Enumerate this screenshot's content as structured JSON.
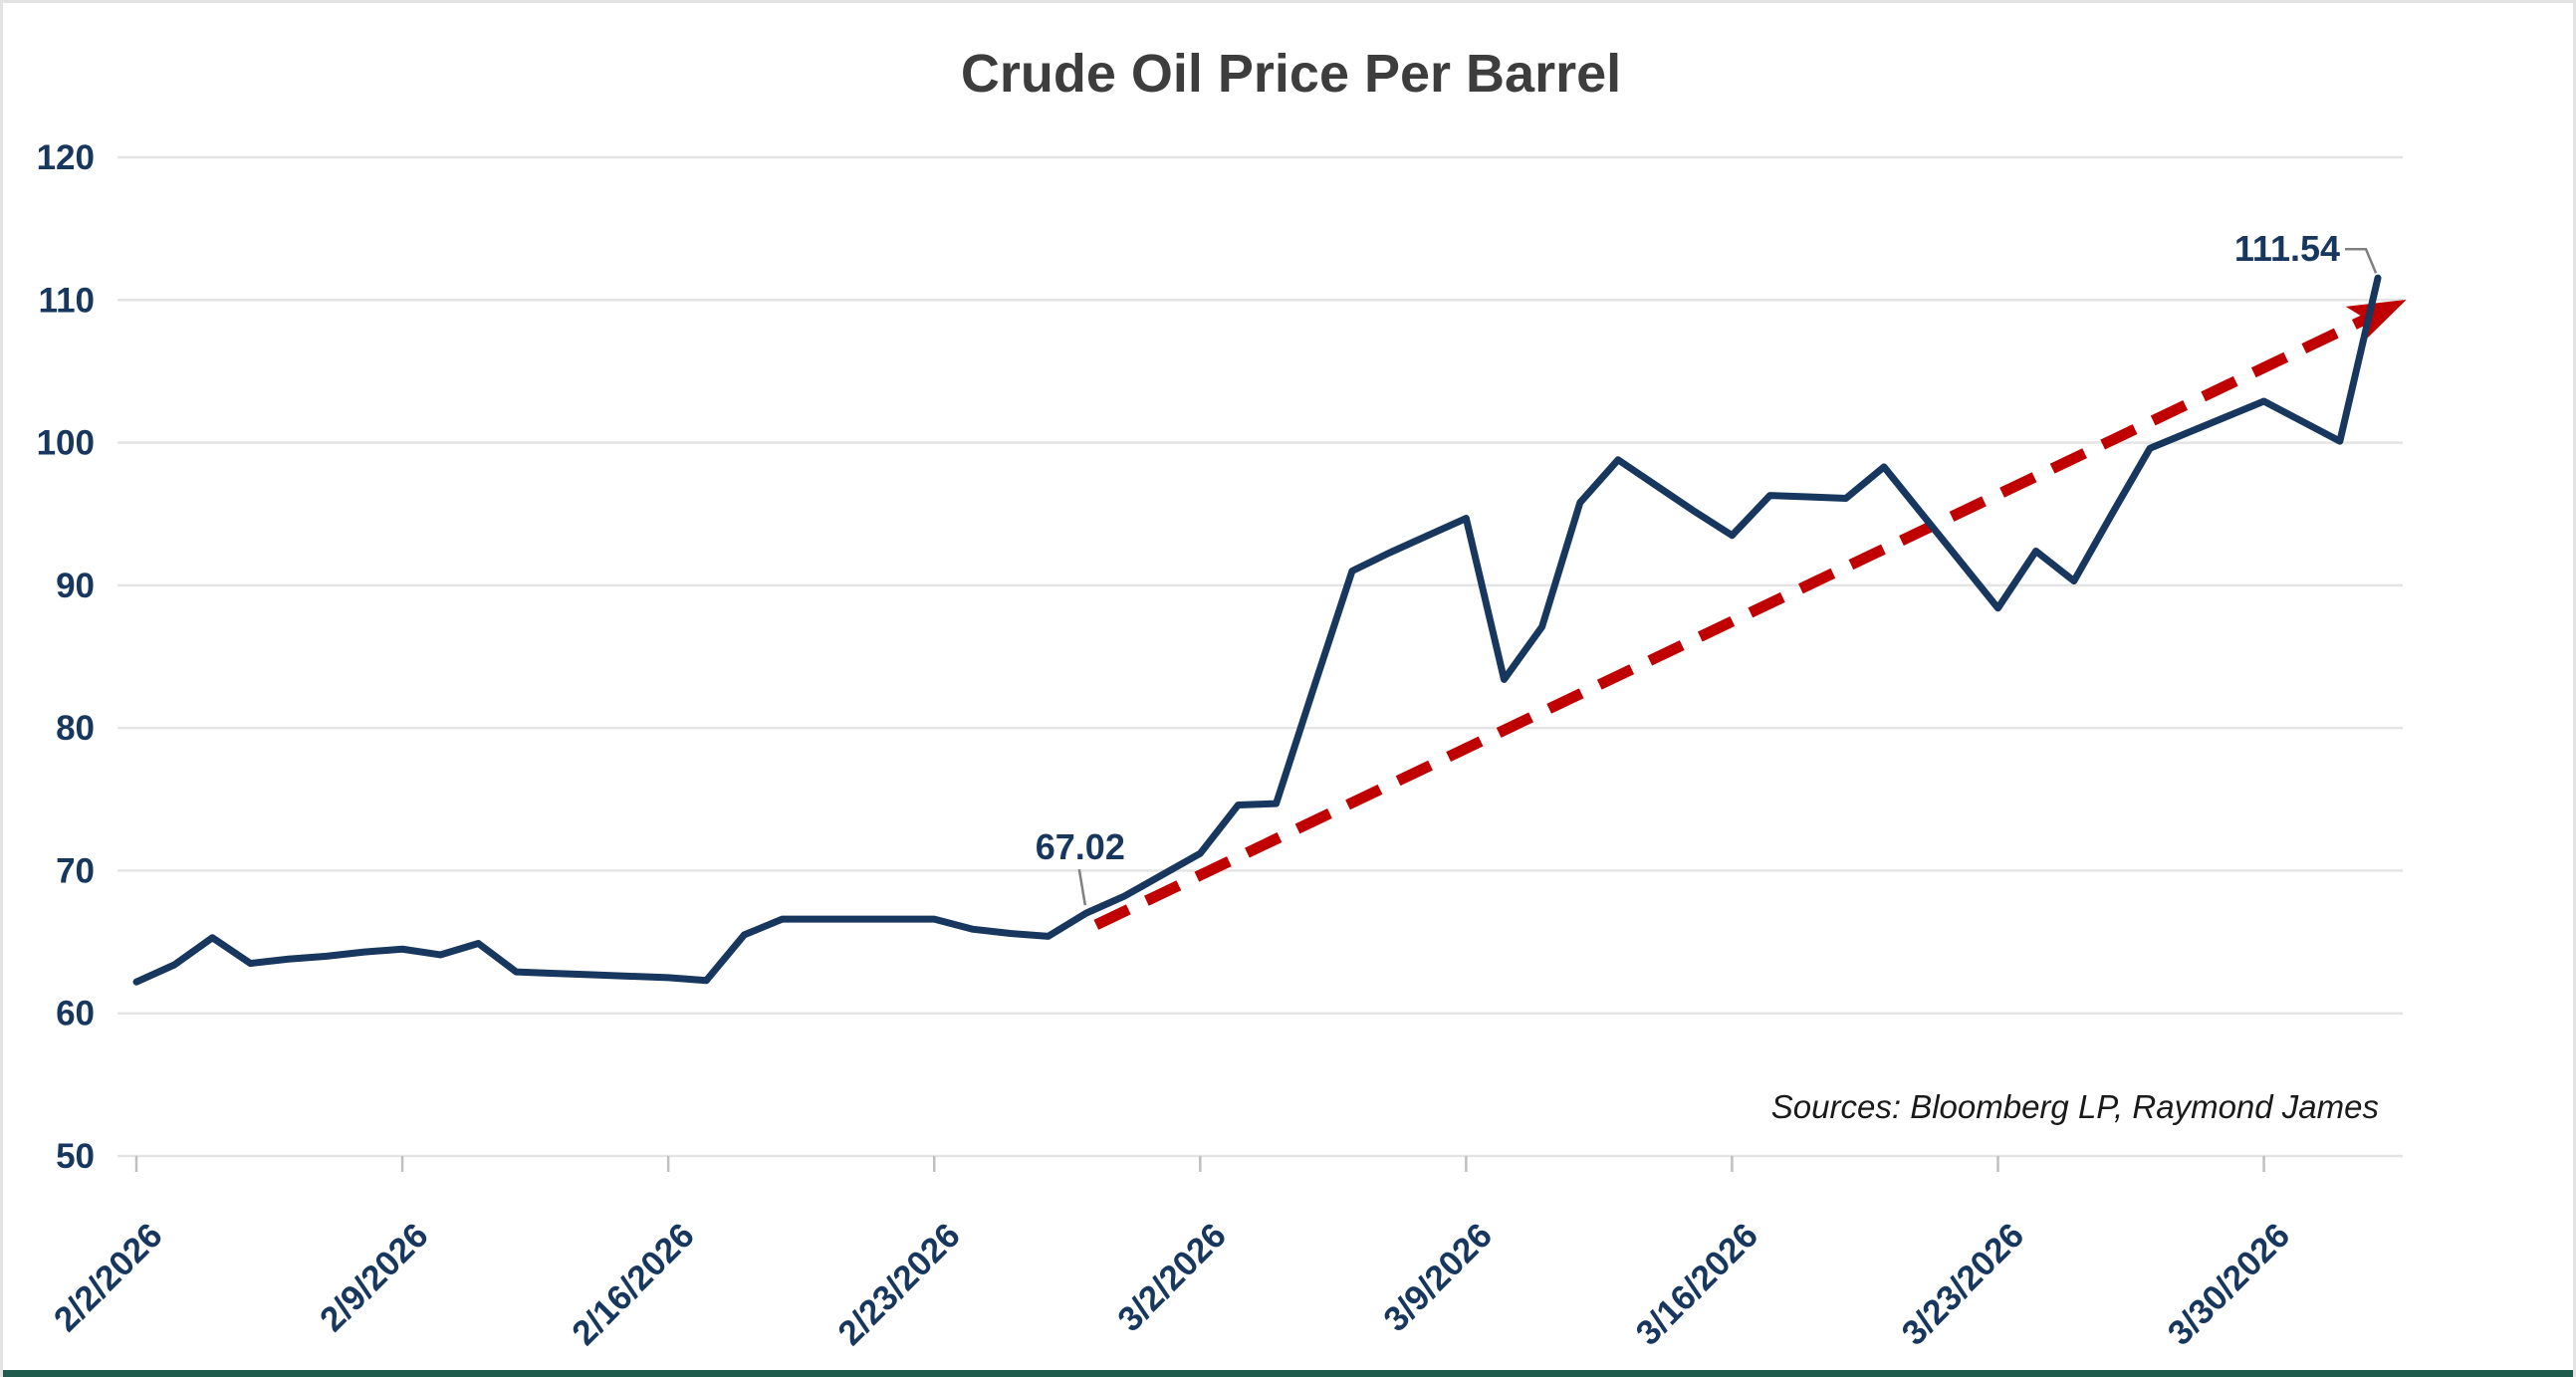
{
  "colors": {
    "series_line": "#17375E",
    "trend_line": "#C00000",
    "gridline": "#E4E4E4",
    "tick_mark": "#BFBFBF",
    "axis_text": "#17375E",
    "title_text": "#3D3D3D",
    "source_text": "#1A1A1A",
    "leader_line": "#808080",
    "bottom_bar": "#1F5C4D",
    "frame_border": "#E3E3E3"
  },
  "chart_data": {
    "type": "line",
    "title": "Crude Oil Price Per Barrel",
    "source_note": "Sources: Bloomberg LP, Raymond James",
    "grid": "horizontal",
    "legend": "none",
    "y_axis": {
      "ticks": [
        120,
        110,
        100,
        90,
        80,
        70,
        60,
        50
      ],
      "ylim": [
        50,
        120
      ]
    },
    "x_axis": {
      "labels": [
        "2/2/2026",
        "2/9/2026",
        "2/16/2026",
        "2/23/2026",
        "3/2/2026",
        "3/9/2026",
        "3/16/2026",
        "3/23/2026",
        "3/30/2026"
      ]
    },
    "x": [
      "2/2/2026",
      "2/3/2026",
      "2/4/2026",
      "2/5/2026",
      "2/6/2026",
      "2/7/2026",
      "2/8/2026",
      "2/9/2026",
      "2/10/2026",
      "2/11/2026",
      "2/12/2026",
      "2/13/2026",
      "2/14/2026",
      "2/15/2026",
      "2/16/2026",
      "2/17/2026",
      "2/18/2026",
      "2/19/2026",
      "2/20/2026",
      "2/21/2026",
      "2/22/2026",
      "2/23/2026",
      "2/24/2026",
      "2/25/2026",
      "2/26/2026",
      "2/27/2026",
      "2/28/2026",
      "3/1/2026",
      "3/2/2026",
      "3/3/2026",
      "3/4/2026",
      "3/5/2026",
      "3/6/2026",
      "3/7/2026",
      "3/8/2026",
      "3/9/2026",
      "3/10/2026",
      "3/11/2026",
      "3/12/2026",
      "3/13/2026",
      "3/14/2026",
      "3/15/2026",
      "3/16/2026",
      "3/17/2026",
      "3/18/2026",
      "3/19/2026",
      "3/20/2026",
      "3/21/2026",
      "3/22/2026",
      "3/23/2026",
      "3/24/2026",
      "3/25/2026",
      "3/26/2026",
      "3/27/2026",
      "3/28/2026",
      "3/29/2026",
      "3/30/2026",
      "3/31/2026",
      "4/1/2026",
      "4/2/2026"
    ],
    "series": [
      {
        "name": "Crude Oil Price Per Barrel",
        "values": [
          62.2,
          63.4,
          65.3,
          63.5,
          63.8,
          64.0,
          64.3,
          64.5,
          64.1,
          64.9,
          62.9,
          62.8,
          62.7,
          62.6,
          62.5,
          62.3,
          65.5,
          66.6,
          66.6,
          66.6,
          66.6,
          66.6,
          65.9,
          65.6,
          65.4,
          67.02,
          68.2,
          69.7,
          71.2,
          74.6,
          74.7,
          82.9,
          91.0,
          92.3,
          93.5,
          94.7,
          83.4,
          87.1,
          95.8,
          98.8,
          97.0,
          95.2,
          93.5,
          96.3,
          96.2,
          96.1,
          98.3,
          95.0,
          91.7,
          88.4,
          92.4,
          90.3,
          95.0,
          99.6,
          100.7,
          101.8,
          102.9,
          101.5,
          100.1,
          111.54
        ]
      }
    ],
    "trendline": {
      "style": "dashed",
      "arrow": true,
      "from": {
        "date": "2/27/2026",
        "value": 66.2
      },
      "to": {
        "date": "4/2/2026",
        "value": 109.6
      }
    },
    "annotations": [
      {
        "label": "67.02",
        "date": "2/27/2026",
        "value": 67.02
      },
      {
        "label": "111.54",
        "date": "4/2/2026",
        "value": 111.54
      }
    ]
  }
}
